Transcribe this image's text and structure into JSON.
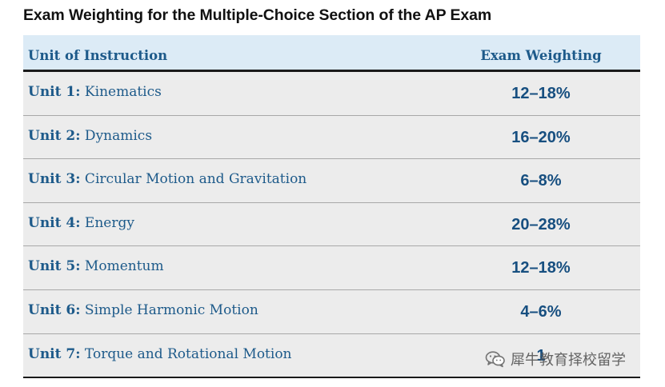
{
  "title": "Exam Weighting for the Multiple-Choice Section of the AP Exam",
  "table": {
    "headers": {
      "unit": "Unit of Instruction",
      "weight": "Exam Weighting"
    },
    "rows": [
      {
        "unit_num": "Unit 1:",
        "unit_name": " Kinematics",
        "weight": "12–18%"
      },
      {
        "unit_num": "Unit 2:",
        "unit_name": " Dynamics",
        "weight": "16–20%"
      },
      {
        "unit_num": "Unit 3:",
        "unit_name": " Circular Motion and Gravitation",
        "weight": "6–8%"
      },
      {
        "unit_num": "Unit 4:",
        "unit_name": " Energy",
        "weight": "20–28%"
      },
      {
        "unit_num": "Unit 5:",
        "unit_name": " Momentum",
        "weight": "12–18%"
      },
      {
        "unit_num": "Unit 6:",
        "unit_name": " Simple Harmonic Motion",
        "weight": "4–6%"
      },
      {
        "unit_num": "Unit 7:",
        "unit_name": " Torque and Rotational Motion",
        "weight": "1"
      }
    ]
  },
  "watermark": {
    "icon": "wechat-icon",
    "text": "犀牛教育择校留学"
  }
}
